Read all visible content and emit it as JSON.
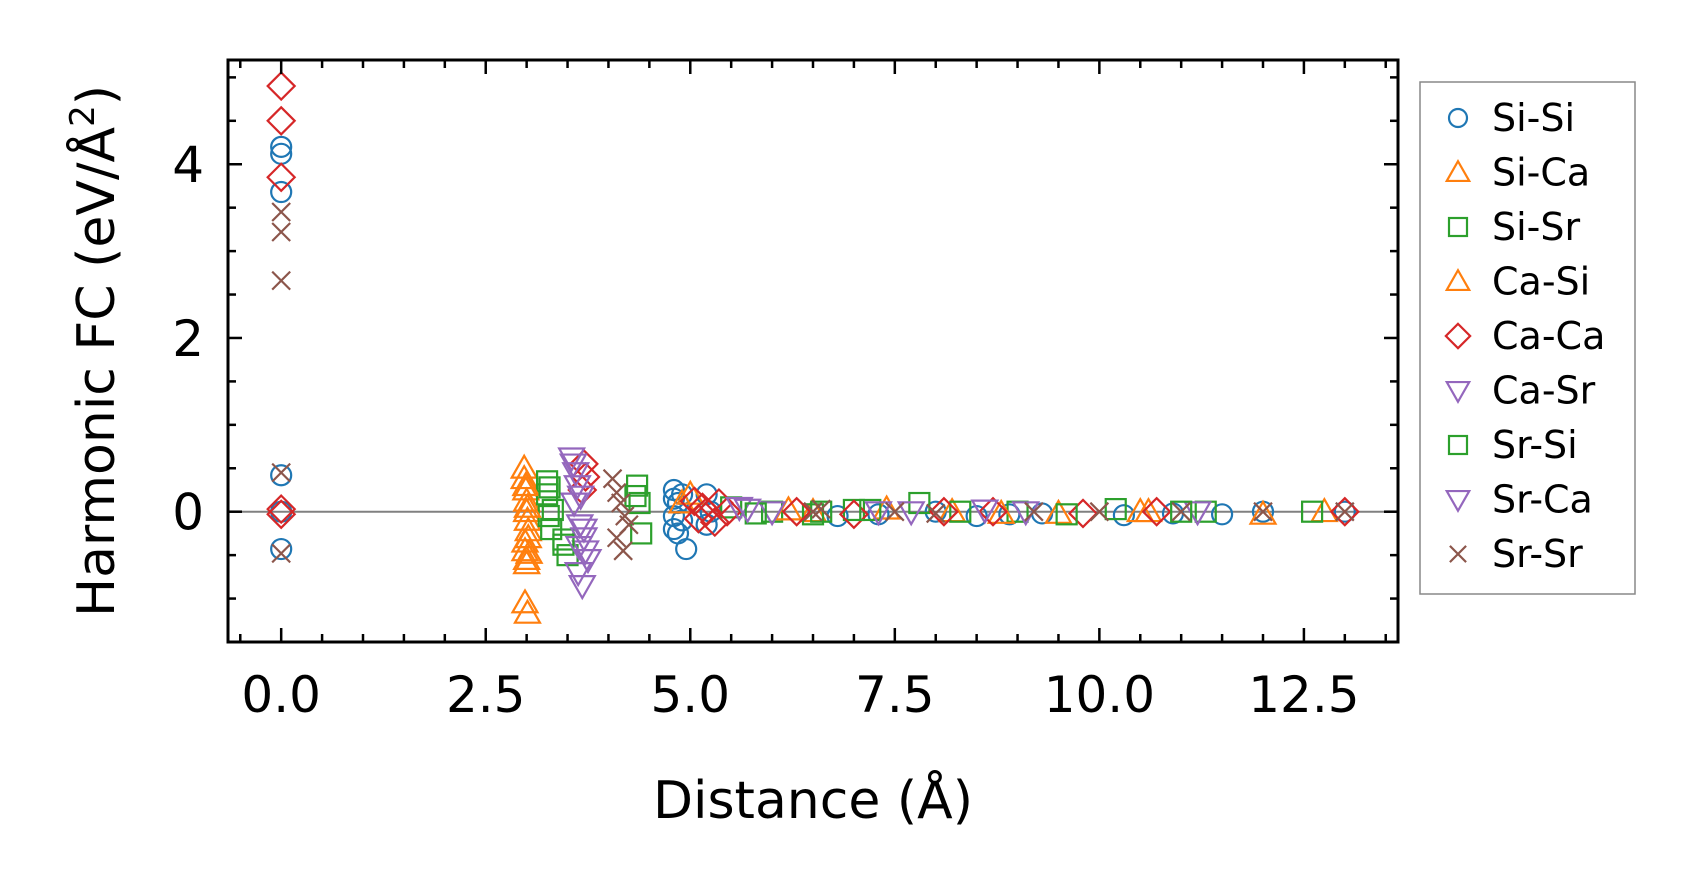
{
  "chart_data": {
    "type": "scatter",
    "title": "",
    "xlabel": "Distance (Å)",
    "ylabel_main": "Harmonic FC (eV/Å",
    "ylabel_sup": "2",
    "ylabel_close": ")",
    "xlim": [
      -0.65,
      13.65
    ],
    "ylim": [
      -1.5,
      5.2
    ],
    "xticks": [
      0.0,
      2.5,
      5.0,
      7.5,
      10.0,
      12.5
    ],
    "xtick_labels": [
      "0.0",
      "2.5",
      "5.0",
      "7.5",
      "10.0",
      "12.5"
    ],
    "yticks": [
      0,
      2,
      4
    ],
    "ytick_labels": [
      "0",
      "2",
      "4"
    ],
    "zero_line": true,
    "legend_position": "outside-right",
    "series": [
      {
        "name": "Si-Si",
        "marker": "circle",
        "color": "#1f77b4",
        "x": [
          0,
          0,
          0,
          0,
          0,
          0,
          4.8,
          4.8,
          4.8,
          4.8,
          4.85,
          4.85,
          4.9,
          4.9,
          4.95,
          5.2,
          5.2,
          5.25,
          6.8,
          7.3,
          8.0,
          8.5,
          8.9,
          9.3,
          10.3,
          10.9,
          11.5,
          12.0,
          13.0
        ],
        "y": [
          4.2,
          4.12,
          3.68,
          0.42,
          0.0,
          -0.43,
          0.25,
          0.15,
          -0.05,
          -0.2,
          0.1,
          -0.25,
          0.2,
          -0.1,
          -0.43,
          0.2,
          -0.15,
          0.0,
          -0.05,
          -0.03,
          0.0,
          -0.05,
          -0.03,
          -0.02,
          -0.04,
          -0.02,
          -0.03,
          0.0,
          0.0
        ]
      },
      {
        "name": "Si-Ca",
        "marker": "triangle-up",
        "color": "#ff7f0e",
        "x": [
          2.97,
          2.97,
          2.99,
          3.0,
          3.0,
          3.01,
          3.02,
          2.98,
          3.03,
          3.0,
          2.98,
          3.01,
          5.0,
          6.5,
          7.4,
          8.2,
          9.5,
          10.5,
          12.0,
          12.75
        ],
        "y": [
          0.5,
          0.38,
          0.25,
          0.12,
          0.0,
          -0.1,
          -0.22,
          -0.35,
          -0.48,
          -0.6,
          -1.05,
          -1.17,
          0.2,
          0.0,
          0.03,
          0.0,
          -0.02,
          0.0,
          -0.03,
          0.0
        ]
      },
      {
        "name": "Si-Sr",
        "marker": "square",
        "color": "#2ca02c",
        "x": [
          3.25,
          3.25,
          3.27,
          3.3,
          3.45,
          3.5,
          4.35,
          4.38,
          4.4,
          5.5,
          6.0,
          6.5,
          7.0,
          7.8,
          8.3,
          9.0,
          10.2,
          11.3,
          12.6
        ],
        "y": [
          0.35,
          0.2,
          -0.05,
          -0.2,
          -0.32,
          -0.5,
          0.3,
          0.1,
          -0.25,
          0.05,
          0.0,
          -0.03,
          0.02,
          0.1,
          0.0,
          0.0,
          0.03,
          0.0,
          0.0
        ]
      },
      {
        "name": "Ca-Si",
        "marker": "triangle-up",
        "color": "#ff7f0e",
        "x": [
          2.99,
          3.01,
          3.02,
          2.98,
          3.0,
          4.9,
          6.2,
          8.8,
          10.6
        ],
        "y": [
          0.3,
          0.05,
          -0.3,
          -0.45,
          -0.55,
          0.1,
          0.02,
          -0.02,
          0.0
        ]
      },
      {
        "name": "Ca-Ca",
        "marker": "diamond",
        "color": "#d62728",
        "x": [
          0,
          0,
          0,
          0,
          0,
          3.7,
          3.72,
          3.68,
          5.05,
          5.1,
          5.15,
          5.2,
          5.3,
          5.35,
          5.45,
          6.3,
          7.0,
          8.1,
          8.7,
          9.8,
          10.7,
          13.0
        ],
        "y": [
          4.9,
          4.5,
          3.85,
          0.03,
          -0.03,
          0.55,
          0.4,
          0.25,
          0.12,
          -0.08,
          0.05,
          0.0,
          -0.12,
          0.1,
          0.0,
          0.0,
          -0.03,
          0.0,
          0.0,
          -0.02,
          0.0,
          0.0
        ]
      },
      {
        "name": "Ca-Sr",
        "marker": "triangle-down",
        "color": "#9467bd",
        "x": [
          3.55,
          3.6,
          3.62,
          3.58,
          3.65,
          3.7,
          3.72,
          3.75,
          3.63,
          3.68,
          5.6,
          6.0,
          7.7,
          8.6,
          11.2
        ],
        "y": [
          0.62,
          0.45,
          0.3,
          0.1,
          -0.15,
          -0.3,
          -0.45,
          -0.55,
          -0.7,
          -0.85,
          0.05,
          0.0,
          0.0,
          0.02,
          0.0
        ]
      },
      {
        "name": "Sr-Si",
        "marker": "square",
        "color": "#2ca02c",
        "x": [
          3.28,
          3.32,
          3.45,
          4.33,
          5.8,
          6.6,
          7.2,
          9.6,
          11.0
        ],
        "y": [
          0.28,
          0.02,
          -0.38,
          0.18,
          -0.02,
          0.0,
          0.02,
          -0.03,
          0.0
        ]
      },
      {
        "name": "Sr-Ca",
        "marker": "triangle-down",
        "color": "#9467bd",
        "x": [
          3.57,
          3.66,
          3.7,
          3.64,
          5.7,
          7.3,
          9.1
        ],
        "y": [
          0.55,
          0.18,
          -0.2,
          -0.4,
          0.03,
          0.0,
          0.0
        ]
      },
      {
        "name": "Sr-Sr",
        "marker": "x",
        "color": "#8c564b",
        "x": [
          0,
          0,
          0,
          0,
          0,
          4.05,
          4.1,
          4.15,
          4.2,
          4.25,
          4.1,
          4.18,
          6.5,
          6.6,
          7.5,
          8.0,
          9.2,
          10.0,
          11.0,
          12.0,
          13.0
        ],
        "y": [
          3.45,
          3.22,
          2.66,
          0.45,
          -0.48,
          0.38,
          0.22,
          0.1,
          -0.05,
          -0.15,
          -0.3,
          -0.45,
          0.0,
          0.03,
          0.0,
          -0.02,
          0.0,
          0.0,
          0.0,
          0.0,
          0.0
        ]
      }
    ]
  }
}
